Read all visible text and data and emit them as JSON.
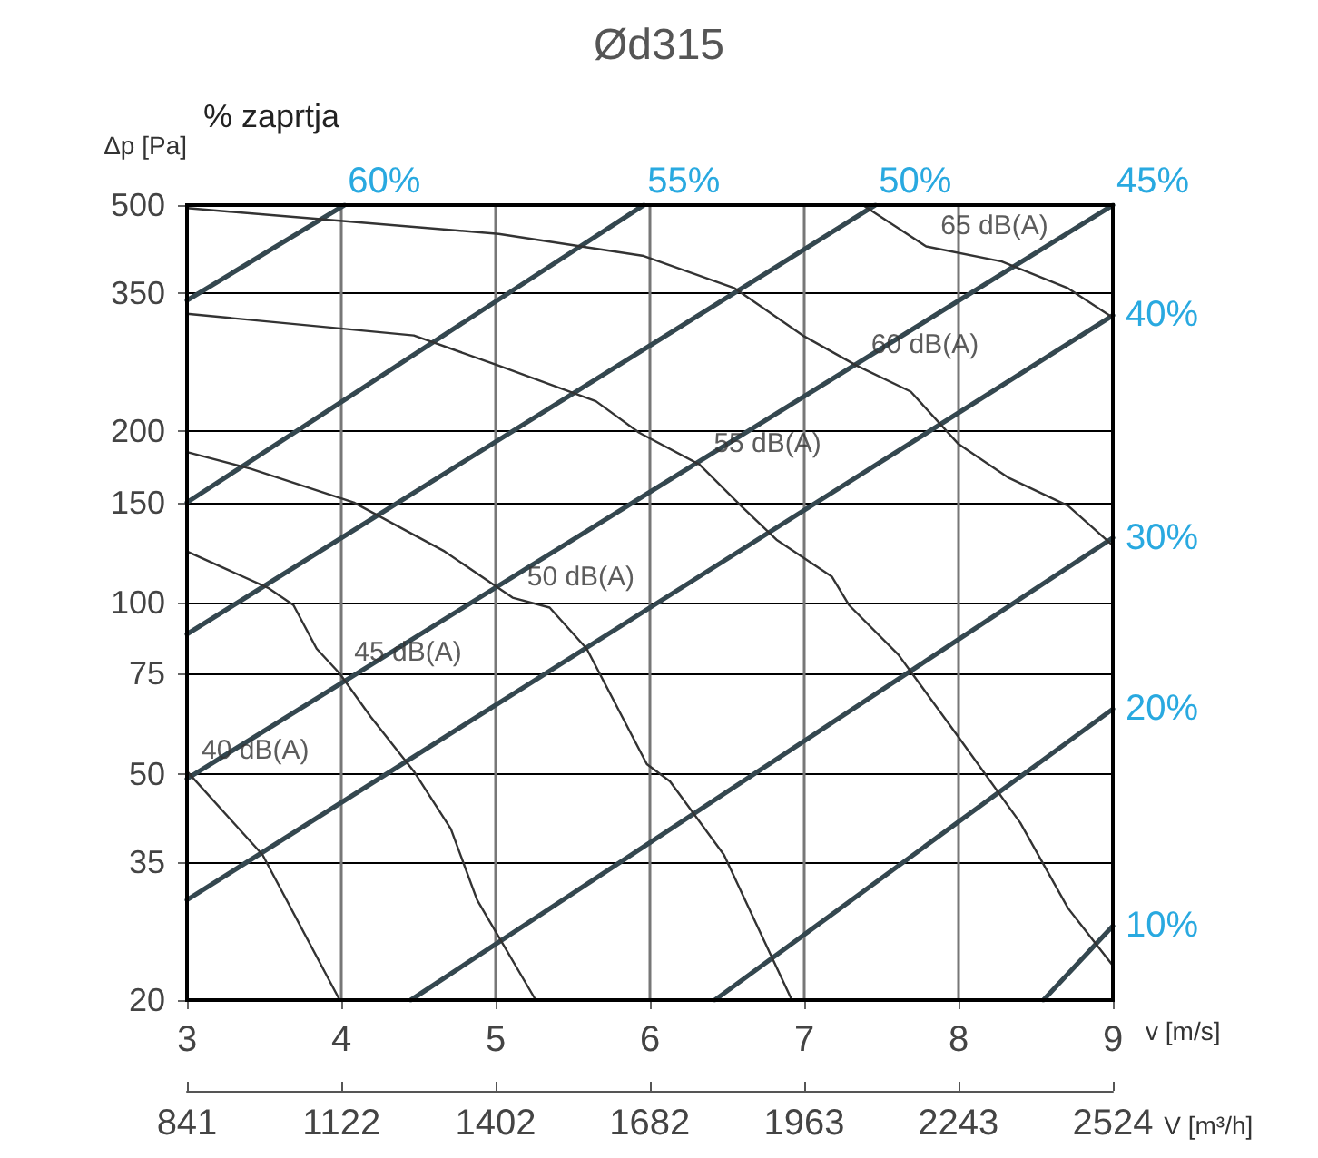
{
  "chart_data": {
    "type": "line",
    "title": "Ød315",
    "xlabel": "v [m/s]",
    "ylabel": "Δp [Pa]",
    "x2label": "V [m³/h]",
    "xlim": [
      3,
      9
    ],
    "xticks": [
      3,
      4,
      5,
      6,
      7,
      8,
      9
    ],
    "x2lim": [
      841,
      2524
    ],
    "x2ticks": [
      841,
      1122,
      1402,
      1682,
      1963,
      2243,
      2524
    ],
    "ylim": [
      20,
      500
    ],
    "yticks": [
      20,
      35,
      50,
      75,
      100,
      150,
      200,
      350,
      500
    ],
    "log": "y",
    "grid": true,
    "legend": false,
    "marker": "none",
    "line_style": "solid",
    "annotations": [
      "% zaprtja",
      {
        "text": "65 dB(A)",
        "x": 7.79,
        "y": 423
      },
      {
        "text": "60 dB(A)",
        "x": 7.34,
        "y": 261
      },
      {
        "text": "55 dB(A)",
        "x": 6.32,
        "y": 175
      },
      {
        "text": "50 dB(A)",
        "x": 5.11,
        "y": 102
      },
      {
        "text": "45 dB(A)",
        "x": 3.99,
        "y": 75
      },
      {
        "text": "40 dB(A)",
        "x": 3,
        "y": 50.5
      }
    ],
    "series": [
      {
        "name": "60%",
        "color": "#34474f",
        "x": [
          3,
          4.02
        ],
        "values": [
          340,
          500
        ]
      },
      {
        "name": "55%",
        "color": "#34474f",
        "x": [
          3,
          5.96
        ],
        "values": [
          150,
          500
        ]
      },
      {
        "name": "50%",
        "color": "#34474f",
        "x": [
          3,
          7.46
        ],
        "values": [
          88,
          500
        ]
      },
      {
        "name": "45%",
        "color": "#34474f",
        "x": [
          3,
          9
        ],
        "values": [
          49,
          500
        ]
      },
      {
        "name": "40%",
        "color": "#34474f",
        "x": [
          3,
          9
        ],
        "values": [
          30,
          320
        ]
      },
      {
        "name": "30%",
        "color": "#34474f",
        "x": [
          4.45,
          9
        ],
        "values": [
          20,
          130
        ]
      },
      {
        "name": "20%",
        "color": "#34474f",
        "x": [
          6.42,
          9
        ],
        "values": [
          20,
          65
        ]
      },
      {
        "name": "10%",
        "color": "#34474f",
        "x": [
          8.55,
          9
        ],
        "values": [
          20,
          27
        ]
      },
      {
        "color": "#333333",
        "x": [
          7.38,
          7.79,
          8.28,
          8.71,
          9
        ],
        "values": [
          500,
          423,
          398,
          357,
          317
        ]
      },
      {
        "color": "#333333",
        "x": [
          3,
          5.02,
          5.96,
          6.55,
          6.99,
          7.34,
          7.69,
          8.0,
          8.32,
          8.71,
          9
        ],
        "values": [
          494,
          445,
          407,
          357,
          295,
          261,
          235,
          190,
          166,
          148,
          126
        ]
      },
      {
        "color": "#333333",
        "x": [
          3,
          4.47,
          5.02,
          5.65,
          5.93,
          6.32,
          6.59,
          6.82,
          7.18,
          7.29,
          7.61,
          8.0,
          8.4,
          8.71,
          9
        ],
        "values": [
          322,
          295,
          261,
          226,
          199,
          175,
          148,
          129,
          111,
          99,
          81,
          58,
          41,
          29,
          23
        ]
      },
      {
        "color": "#333333",
        "x": [
          3,
          3.41,
          4.08,
          4.67,
          5.11,
          5.35,
          5.59,
          5.82,
          5.98,
          6.13,
          6.48,
          6.92
        ],
        "values": [
          184,
          172,
          150,
          123,
          102,
          98,
          83,
          63,
          52,
          48.5,
          36,
          20
        ]
      },
      {
        "color": "#333333",
        "x": [
          3,
          3.53,
          3.69,
          3.84,
          3.99,
          4.19,
          4.47,
          4.71,
          4.88,
          5.26
        ],
        "values": [
          123,
          106,
          99,
          83,
          75,
          63,
          50.5,
          40,
          30,
          20
        ]
      },
      {
        "color": "#333333",
        "x": [
          3,
          3.49,
          3.99
        ],
        "values": [
          50.5,
          36,
          20
        ]
      }
    ]
  }
}
